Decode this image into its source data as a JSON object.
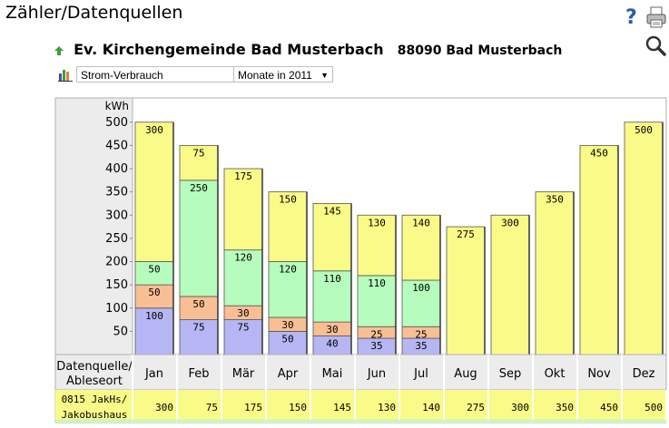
{
  "page": {
    "title": "Zähler/Datenquellen",
    "org_name": "Ev. Kirchengemeinde Bad Musterbach",
    "org_place": "88090 Bad Musterbach"
  },
  "controls": {
    "type_select": "Strom-Verbrauch",
    "period_select": "Monate in 2011"
  },
  "icons": {
    "help": "help-icon",
    "print": "print-icon",
    "zoom": "zoom-icon",
    "chart": "bar-chart-icon",
    "up": "up-arrow-icon"
  },
  "colors": {
    "blue": "#b6b6f4",
    "orange": "#f8bf94",
    "green": "#b6fcbc",
    "yellow": "#fafa88",
    "row_highlight": "#fafa88",
    "axis_bg": "#ececec"
  },
  "table": {
    "header_label": [
      "Datenquelle/",
      "Ableseort"
    ],
    "row_label": [
      "0815 JakHs/",
      "Jakobushaus"
    ],
    "row_values": [
      300,
      75,
      175,
      150,
      145,
      130,
      140,
      275,
      300,
      350,
      450,
      500
    ]
  },
  "chart_data": {
    "type": "bar",
    "stacked": true,
    "ylabel": "kWh",
    "ylim": [
      0,
      500
    ],
    "yticks": [
      50,
      100,
      150,
      200,
      250,
      300,
      350,
      400,
      450,
      500
    ],
    "categories": [
      "Jan",
      "Feb",
      "Mär",
      "Apr",
      "Mai",
      "Jun",
      "Jul",
      "Aug",
      "Sep",
      "Okt",
      "Nov",
      "Dez"
    ],
    "series": [
      {
        "color": "#b6b6f4",
        "values": [
          100,
          75,
          75,
          50,
          40,
          35,
          35,
          0,
          0,
          0,
          0,
          0
        ]
      },
      {
        "color": "#f8bf94",
        "values": [
          50,
          50,
          30,
          30,
          30,
          25,
          25,
          0,
          0,
          0,
          0,
          0
        ]
      },
      {
        "color": "#b6fcbc",
        "values": [
          50,
          250,
          120,
          120,
          110,
          110,
          100,
          0,
          0,
          0,
          0,
          0
        ]
      },
      {
        "color": "#fafa88",
        "values": [
          300,
          75,
          175,
          150,
          145,
          130,
          140,
          275,
          300,
          350,
          450,
          500
        ]
      }
    ]
  }
}
